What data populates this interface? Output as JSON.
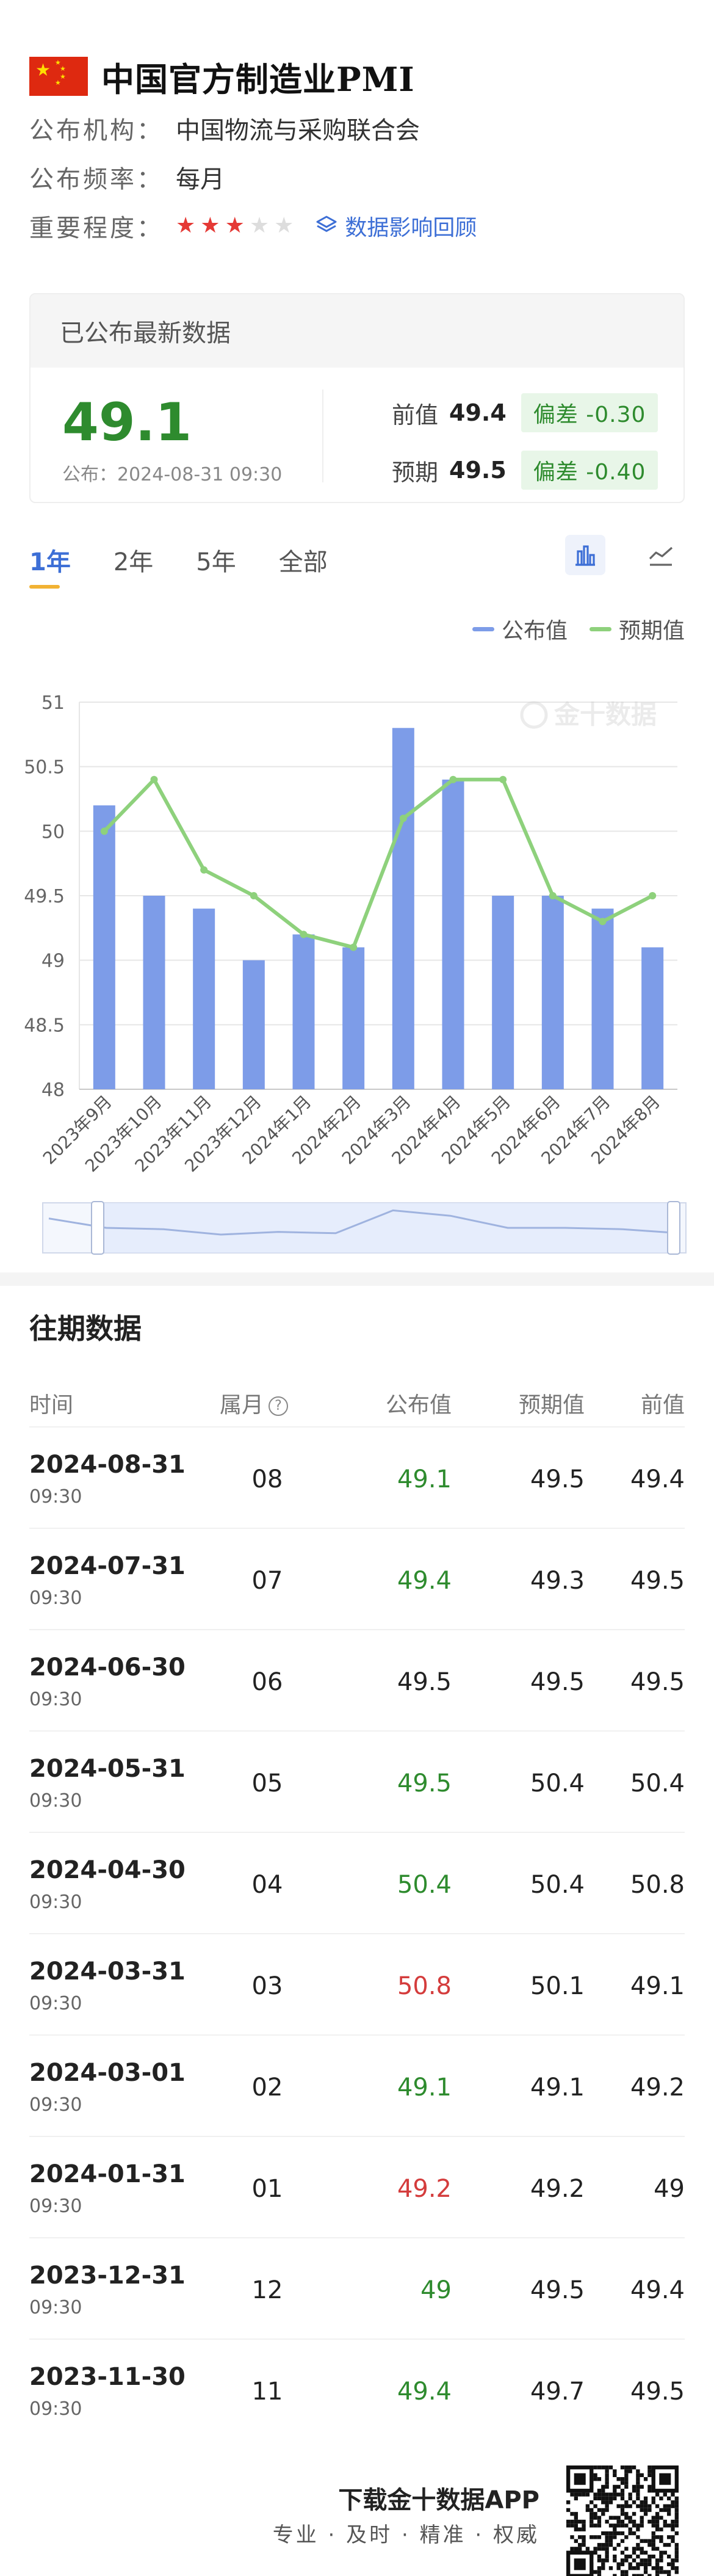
{
  "header": {
    "title": "中国官方制造业PMI",
    "publisher_label": "公布机构：",
    "publisher": "中国物流与采购联合会",
    "frequency_label": "公布频率：",
    "frequency": "每月",
    "importance_label": "重要程度：",
    "importance_stars": 3,
    "importance_max": 5,
    "review_link": "数据影响回顾"
  },
  "latest": {
    "heading": "已公布最新数据",
    "value": "49.1",
    "published": "公布：2024-08-31 09:30",
    "previous_label": "前值",
    "previous_value": "49.4",
    "previous_deviation": "偏差 -0.30",
    "forecast_label": "预期",
    "forecast_value": "49.5",
    "forecast_deviation": "偏差 -0.40"
  },
  "tabs": [
    "1年",
    "2年",
    "5年",
    "全部"
  ],
  "active_tab": "1年",
  "colors": {
    "actual_bar": "#7d9ce8",
    "forecast_line": "#8ed17c",
    "up": "#2e8b2e",
    "down": "#d43c3c",
    "accent": "#3d6fd6"
  },
  "chart_data": {
    "type": "bar",
    "categories": [
      "2023年9月",
      "2023年10月",
      "2023年11月",
      "2023年12月",
      "2024年1月",
      "2024年2月",
      "2024年3月",
      "2024年4月",
      "2024年5月",
      "2024年6月",
      "2024年7月",
      "2024年8月"
    ],
    "series": [
      {
        "name": "公布值",
        "type": "bar",
        "values": [
          50.2,
          49.5,
          49.4,
          49.0,
          49.2,
          49.1,
          50.8,
          50.4,
          49.5,
          49.5,
          49.4,
          49.1
        ]
      },
      {
        "name": "预期值",
        "type": "line",
        "values": [
          50.0,
          50.4,
          49.7,
          49.5,
          49.2,
          49.1,
          50.1,
          50.4,
          50.4,
          49.5,
          49.3,
          49.5
        ]
      }
    ],
    "yticks": [
      "48",
      "48.5",
      "49",
      "49.5",
      "50",
      "50.5",
      "51"
    ],
    "ylim": [
      48,
      51
    ],
    "grid": true,
    "legend": "top-right",
    "watermark": "金十数据"
  },
  "history": {
    "title": "往期数据",
    "columns": {
      "time": "时间",
      "month": "属月",
      "actual": "公布值",
      "forecast": "预期值",
      "previous": "前值"
    },
    "rows": [
      {
        "date": "2024-08-31",
        "time": "09:30",
        "month": "08",
        "actual": "49.1",
        "trend": "up",
        "forecast": "49.5",
        "previous": "49.4"
      },
      {
        "date": "2024-07-31",
        "time": "09:30",
        "month": "07",
        "actual": "49.4",
        "trend": "up",
        "forecast": "49.3",
        "previous": "49.5"
      },
      {
        "date": "2024-06-30",
        "time": "09:30",
        "month": "06",
        "actual": "49.5",
        "trend": "none",
        "forecast": "49.5",
        "previous": "49.5"
      },
      {
        "date": "2024-05-31",
        "time": "09:30",
        "month": "05",
        "actual": "49.5",
        "trend": "up",
        "forecast": "50.4",
        "previous": "50.4"
      },
      {
        "date": "2024-04-30",
        "time": "09:30",
        "month": "04",
        "actual": "50.4",
        "trend": "up",
        "forecast": "50.4",
        "previous": "50.8"
      },
      {
        "date": "2024-03-31",
        "time": "09:30",
        "month": "03",
        "actual": "50.8",
        "trend": "down",
        "forecast": "50.1",
        "previous": "49.1"
      },
      {
        "date": "2024-03-01",
        "time": "09:30",
        "month": "02",
        "actual": "49.1",
        "trend": "up",
        "forecast": "49.1",
        "previous": "49.2"
      },
      {
        "date": "2024-01-31",
        "time": "09:30",
        "month": "01",
        "actual": "49.2",
        "trend": "down",
        "forecast": "49.2",
        "previous": "49"
      },
      {
        "date": "2023-12-31",
        "time": "09:30",
        "month": "12",
        "actual": "49",
        "trend": "up",
        "forecast": "49.5",
        "previous": "49.4"
      },
      {
        "date": "2023-11-30",
        "time": "09:30",
        "month": "11",
        "actual": "49.4",
        "trend": "up",
        "forecast": "49.7",
        "previous": "49.5"
      }
    ]
  },
  "footer": {
    "title": "下载金十数据APP",
    "subtitle": "专业 · 及时 · 精准 · 权威"
  }
}
